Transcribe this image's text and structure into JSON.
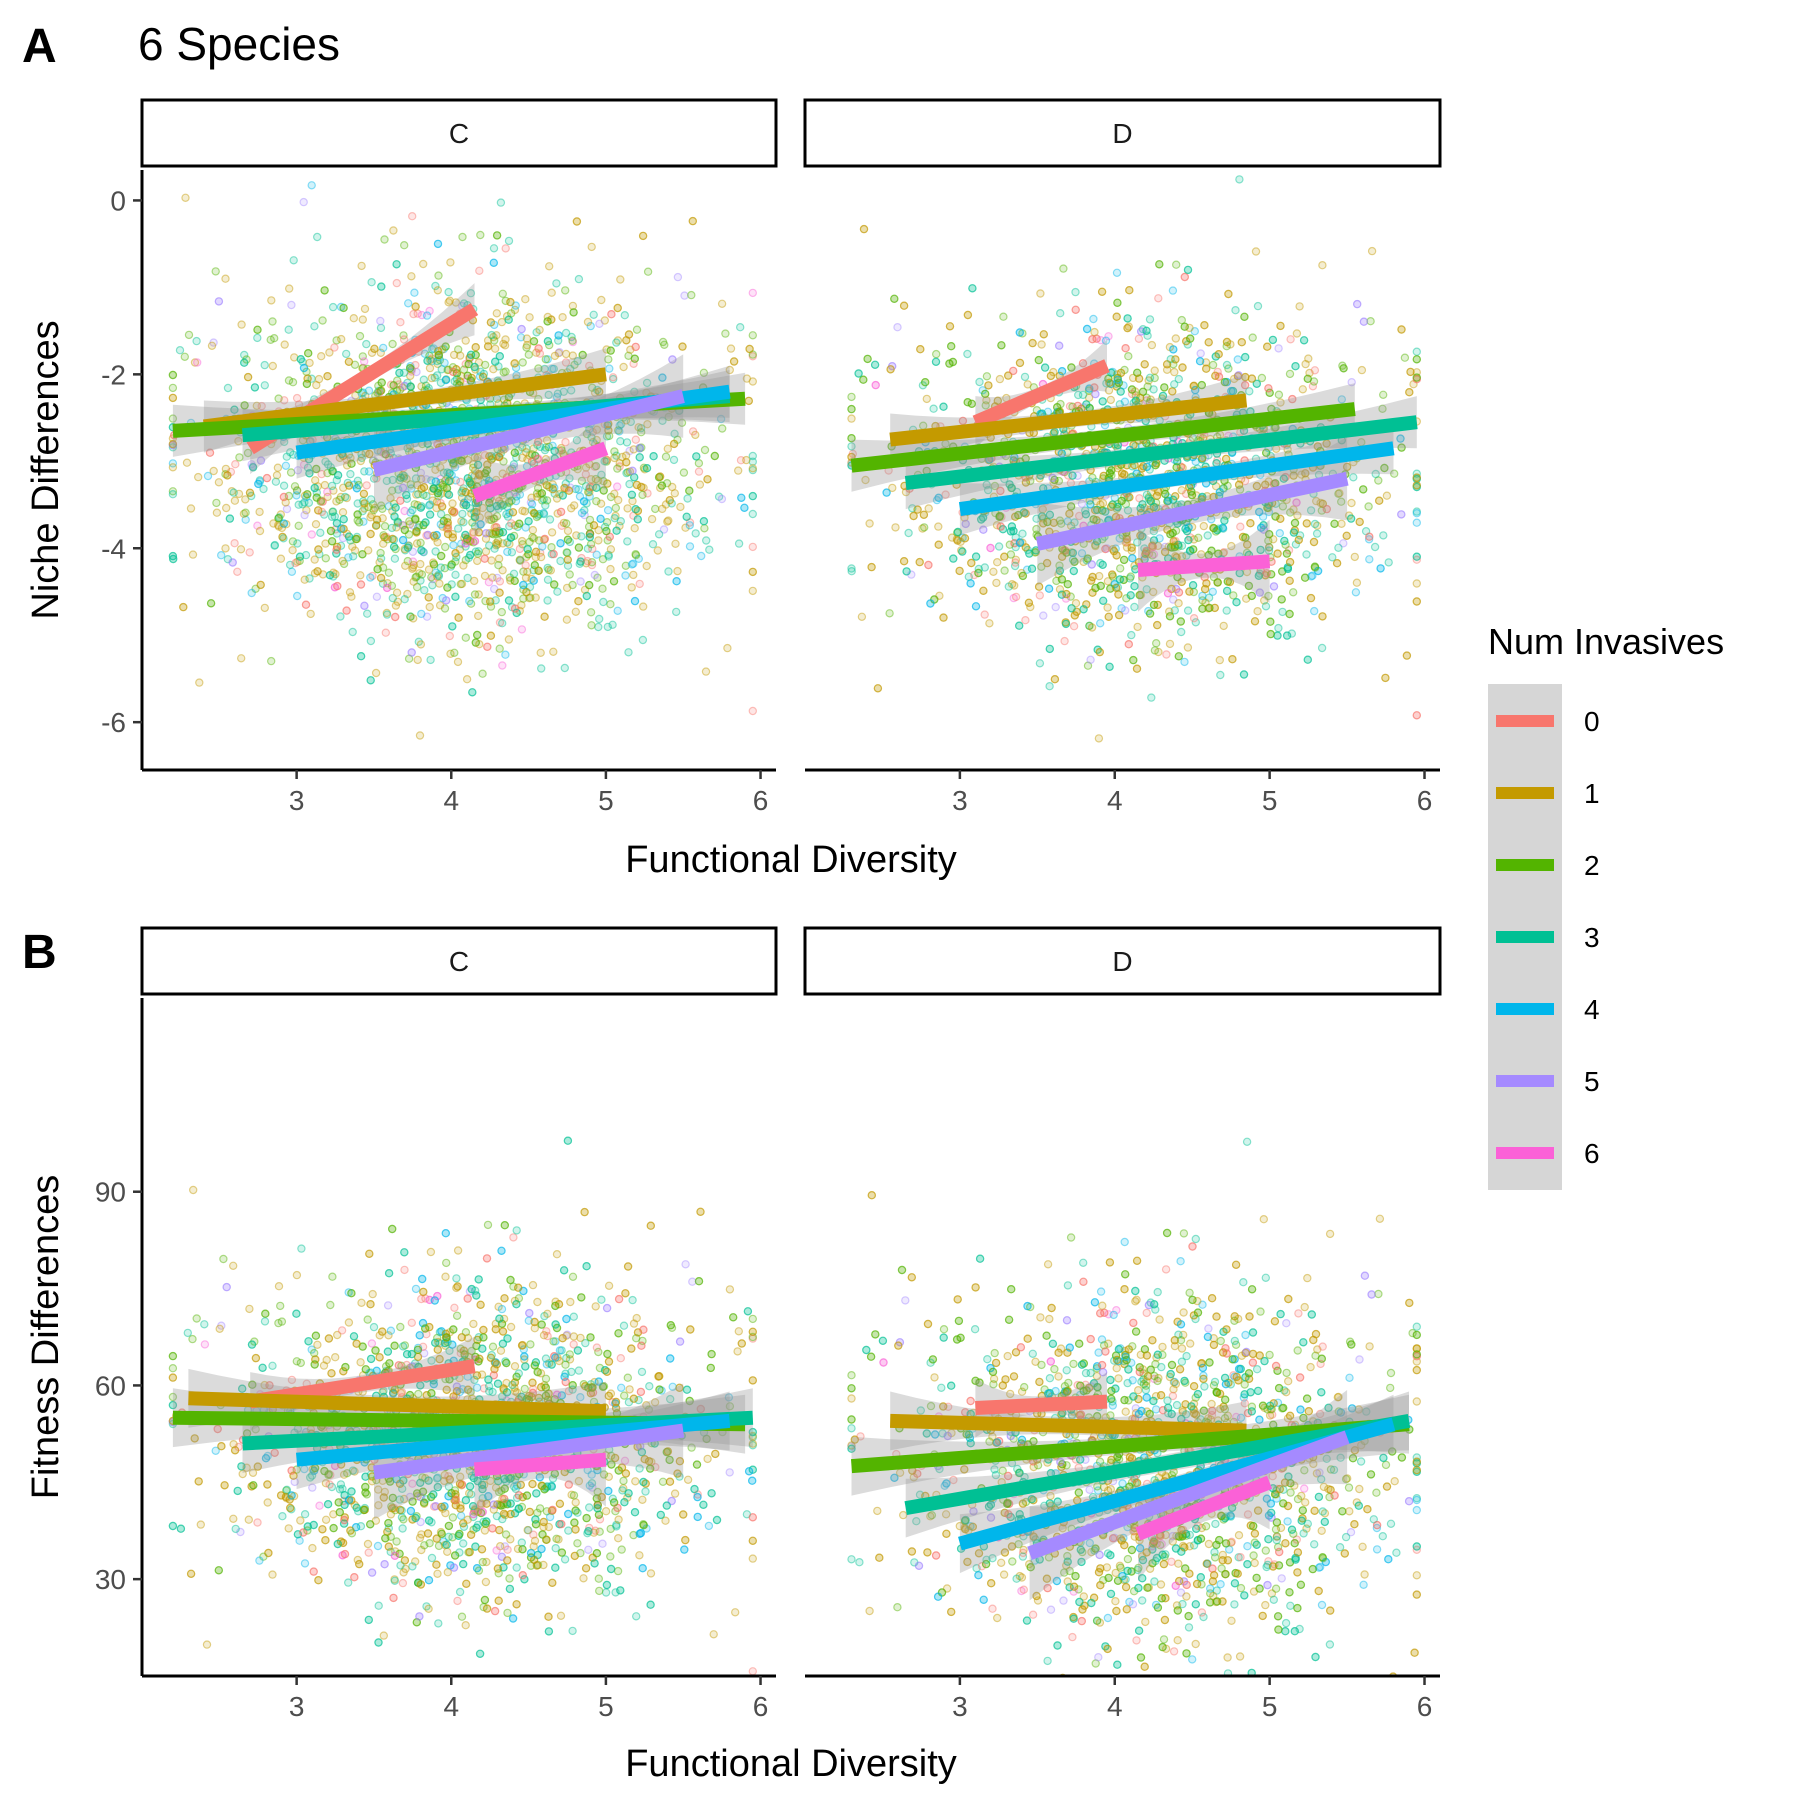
{
  "title": "6 Species",
  "legend": {
    "title": "Num Invasives",
    "levels": [
      "0",
      "1",
      "2",
      "3",
      "4",
      "5",
      "6"
    ],
    "colors": [
      "#F8766D",
      "#C49A00",
      "#53B400",
      "#00C094",
      "#00B6EB",
      "#A58AFF",
      "#FB61D7"
    ]
  },
  "chart_data": [
    {
      "type": "scatter",
      "panel_label": "A",
      "xlabel": "Functional Diversity",
      "ylabel": "Niche Differences",
      "xlim": [
        2.0,
        6.1
      ],
      "ylim": [
        -6.55,
        0.35
      ],
      "x_ticks": [
        3,
        4,
        5,
        6
      ],
      "y_ticks": [
        0,
        -2,
        -4,
        -6
      ],
      "y_tick_labels": [
        "0",
        "-2",
        "-4",
        "-6"
      ],
      "facets": [
        {
          "strip": "C",
          "points": {
            "n": 2600,
            "center": [
              4.05,
              -3.0
            ],
            "spread": [
              0.75,
              0.95
            ],
            "x_range": [
              2.2,
              5.95
            ]
          },
          "fits": [
            {
              "group": "0",
              "x": [
                2.7,
                4.15
              ],
              "y": [
                -2.85,
                -1.25
              ]
            },
            {
              "group": "1",
              "x": [
                2.4,
                5.0
              ],
              "y": [
                -2.6,
                -2.0
              ]
            },
            {
              "group": "2",
              "x": [
                2.2,
                5.9
              ],
              "y": [
                -2.65,
                -2.28
              ]
            },
            {
              "group": "3",
              "x": [
                2.65,
                5.8
              ],
              "y": [
                -2.7,
                -2.25
              ]
            },
            {
              "group": "4",
              "x": [
                3.0,
                5.8
              ],
              "y": [
                -2.9,
                -2.2
              ]
            },
            {
              "group": "5",
              "x": [
                3.5,
                5.5
              ],
              "y": [
                -3.1,
                -2.25
              ]
            },
            {
              "group": "6",
              "x": [
                4.15,
                5.0
              ],
              "y": [
                -3.4,
                -2.85
              ]
            }
          ]
        },
        {
          "strip": "D",
          "points": {
            "n": 2400,
            "center": [
              4.15,
              -3.2
            ],
            "spread": [
              0.75,
              0.9
            ],
            "x_range": [
              2.3,
              5.95
            ]
          },
          "fits": [
            {
              "group": "0",
              "x": [
                3.1,
                3.95
              ],
              "y": [
                -2.55,
                -1.9
              ]
            },
            {
              "group": "1",
              "x": [
                2.55,
                4.85
              ],
              "y": [
                -2.75,
                -2.3
              ]
            },
            {
              "group": "2",
              "x": [
                2.3,
                5.55
              ],
              "y": [
                -3.05,
                -2.4
              ]
            },
            {
              "group": "3",
              "x": [
                2.65,
                5.95
              ],
              "y": [
                -3.25,
                -2.55
              ]
            },
            {
              "group": "4",
              "x": [
                3.0,
                5.8
              ],
              "y": [
                -3.55,
                -2.85
              ]
            },
            {
              "group": "5",
              "x": [
                3.5,
                5.5
              ],
              "y": [
                -3.95,
                -3.2
              ]
            },
            {
              "group": "6",
              "x": [
                4.15,
                5.0
              ],
              "y": [
                -4.25,
                -4.15
              ]
            }
          ]
        }
      ]
    },
    {
      "type": "scatter",
      "panel_label": "B",
      "xlabel": "Functional Diversity",
      "ylabel": "Fitness Differences",
      "xlim": [
        2.0,
        6.1
      ],
      "ylim": [
        15,
        120
      ],
      "x_ticks": [
        3,
        4,
        5,
        6
      ],
      "y_ticks": [
        30,
        60,
        90
      ],
      "y_tick_labels": [
        "30",
        "60",
        "90"
      ],
      "facets": [
        {
          "strip": "C",
          "points": {
            "n": 2400,
            "center": [
              4.1,
              52
            ],
            "spread": [
              0.75,
              12
            ],
            "x_range": [
              2.2,
              5.95
            ]
          },
          "fits": [
            {
              "group": "0",
              "x": [
                2.7,
                4.15
              ],
              "y": [
                57.5,
                63
              ]
            },
            {
              "group": "1",
              "x": [
                2.3,
                5.0
              ],
              "y": [
                58,
                56
              ]
            },
            {
              "group": "2",
              "x": [
                2.2,
                5.9
              ],
              "y": [
                55,
                54
              ]
            },
            {
              "group": "3",
              "x": [
                2.65,
                5.95
              ],
              "y": [
                51,
                55
              ]
            },
            {
              "group": "4",
              "x": [
                3.0,
                5.8
              ],
              "y": [
                48.5,
                54.5
              ]
            },
            {
              "group": "5",
              "x": [
                3.5,
                5.5
              ],
              "y": [
                46.5,
                53
              ]
            },
            {
              "group": "6",
              "x": [
                4.15,
                5.0
              ],
              "y": [
                47,
                48.5
              ]
            }
          ]
        },
        {
          "strip": "D",
          "points": {
            "n": 2400,
            "center": [
              4.2,
              48
            ],
            "spread": [
              0.75,
              13
            ],
            "x_range": [
              2.3,
              5.95
            ]
          },
          "fits": [
            {
              "group": "0",
              "x": [
                3.1,
                3.95
              ],
              "y": [
                56.5,
                57.5
              ]
            },
            {
              "group": "1",
              "x": [
                2.55,
                4.85
              ],
              "y": [
                54.5,
                53
              ]
            },
            {
              "group": "2",
              "x": [
                2.3,
                5.9
              ],
              "y": [
                47.5,
                54
              ]
            },
            {
              "group": "3",
              "x": [
                2.65,
                5.9
              ],
              "y": [
                41,
                54.5
              ]
            },
            {
              "group": "4",
              "x": [
                3.0,
                5.8
              ],
              "y": [
                35.5,
                54
              ]
            },
            {
              "group": "5",
              "x": [
                3.45,
                5.5
              ],
              "y": [
                34,
                52
              ]
            },
            {
              "group": "6",
              "x": [
                4.15,
                5.0
              ],
              "y": [
                37,
                45
              ]
            }
          ]
        }
      ]
    }
  ]
}
